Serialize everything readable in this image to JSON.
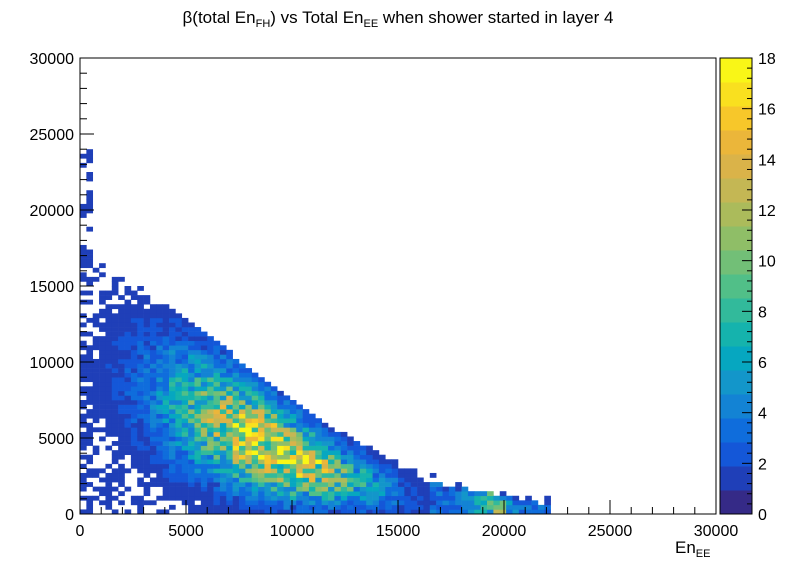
{
  "title": {
    "prefix": "β(total En",
    "sub1": "FH",
    "middle": ") vs Total En",
    "sub2": "EE",
    "suffix": " when  shower started in layer 4"
  },
  "xlabel": {
    "main": "En",
    "sub": "EE"
  },
  "chart_data": {
    "type": "heatmap",
    "title": "β(total En_FH) vs Total En_EE when  shower started in layer 4",
    "xlabel": "En_EE",
    "ylabel": "",
    "xlim": [
      0,
      30000
    ],
    "ylim": [
      0,
      30000
    ],
    "zlim": [
      0,
      18
    ],
    "x_ticks": [
      0,
      5000,
      10000,
      15000,
      20000,
      25000,
      30000
    ],
    "y_ticks": [
      0,
      5000,
      10000,
      15000,
      20000,
      25000,
      30000
    ],
    "z_ticks": [
      0,
      2,
      4,
      6,
      8,
      10,
      12,
      14,
      16,
      18
    ],
    "bin_width": 300,
    "colors": {
      "palette": [
        "#352a87",
        "#1f3fb8",
        "#1457d8",
        "#0f6ddc",
        "#1383d4",
        "#1396ca",
        "#06a7c0",
        "#15b3ad",
        "#32ba9b",
        "#51bf88",
        "#72bf77",
        "#8fbe67",
        "#abbb5b",
        "#c4b754",
        "#dab349",
        "#ebb63a",
        "#f7c72a",
        "#f9e01f",
        "#f9f617"
      ]
    },
    "ridge": [
      [
        0,
        16000
      ],
      [
        2000,
        14500
      ],
      [
        4000,
        12500
      ],
      [
        6000,
        10500
      ],
      [
        8000,
        8200
      ],
      [
        10000,
        6000
      ],
      [
        12000,
        4200
      ],
      [
        14000,
        2800
      ],
      [
        16000,
        1600
      ],
      [
        18000,
        800
      ],
      [
        20000,
        300
      ],
      [
        21000,
        0
      ]
    ],
    "hot_spots": [
      {
        "x": 8200,
        "y": 5700,
        "value": 16
      },
      {
        "x": 11100,
        "y": 3500,
        "value": 16
      },
      {
        "x": 19800,
        "y": 300,
        "value": 18
      },
      {
        "x": 7200,
        "y": 6400,
        "value": 12
      },
      {
        "x": 9300,
        "y": 4400,
        "value": 13
      }
    ],
    "max_entries": 18
  }
}
